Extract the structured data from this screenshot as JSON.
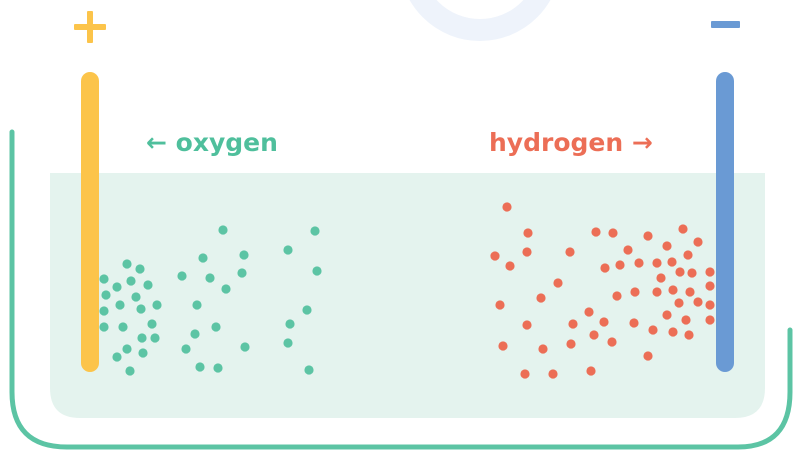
{
  "labels": {
    "oxygen": "← oxygen",
    "hydrogen": "hydrogen →"
  }
}
